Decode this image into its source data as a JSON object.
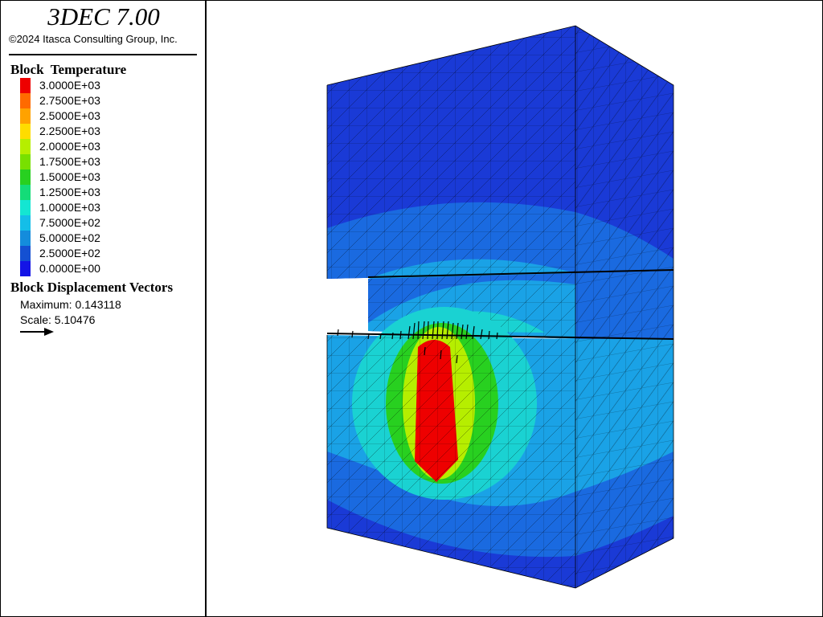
{
  "app": {
    "title": "3DEC 7.00",
    "copyright": "©2024 Itasca Consulting Group, Inc."
  },
  "legend": {
    "title": "Block  Temperature",
    "entries": [
      {
        "label": "3.0000E+03",
        "color": "#ee0000"
      },
      {
        "label": "2.7500E+03",
        "color": "#ff6a00"
      },
      {
        "label": "2.5000E+03",
        "color": "#ffa200"
      },
      {
        "label": "2.2500E+03",
        "color": "#ffdc00"
      },
      {
        "label": "2.0000E+03",
        "color": "#b6ee00"
      },
      {
        "label": "1.7500E+03",
        "color": "#78e000"
      },
      {
        "label": "1.5000E+03",
        "color": "#28d020"
      },
      {
        "label": "1.2500E+03",
        "color": "#14dc78"
      },
      {
        "label": "1.0000E+03",
        "color": "#14e6d2"
      },
      {
        "label": "7.5000E+02",
        "color": "#14bee8"
      },
      {
        "label": "5.0000E+02",
        "color": "#148cdc"
      },
      {
        "label": "2.5000E+02",
        "color": "#1450d2"
      },
      {
        "label": "0.0000E+00",
        "color": "#1414e6"
      }
    ]
  },
  "displacement": {
    "title": "Block Displacement Vectors",
    "maximum": "Maximum: 0.143118",
    "scale": "Scale: 5.10476"
  },
  "viewport": {
    "description_icon": "3d-model-view",
    "colors": {
      "top_face": "#1a22c8",
      "deep_blue": "#1a3ad6",
      "mid_blue": "#1a6ae0",
      "light_blue": "#1aa2e6",
      "cyan": "#1ad2d2",
      "green": "#1ec86a",
      "hot": "#ee0000"
    }
  }
}
